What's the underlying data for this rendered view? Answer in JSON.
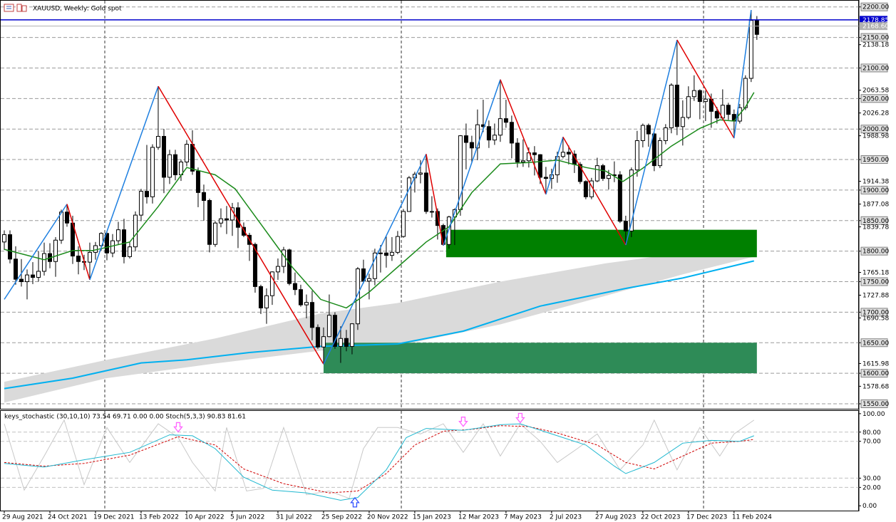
{
  "chart_data": [
    {
      "type": "candlestick",
      "title": "XAUUSD, Weekly:  Gold spot",
      "categories": [
        "29 Aug 2021",
        null,
        null,
        null,
        null,
        null,
        null,
        null,
        "24 Oct 2021",
        null,
        null,
        null,
        null,
        null,
        null,
        null,
        "19 Dec 2021",
        null,
        null,
        null,
        null,
        null,
        null,
        null,
        "13 Feb 2022",
        null,
        null,
        null,
        null,
        null,
        null,
        null,
        "10 Apr 2022",
        null,
        null,
        null,
        null,
        null,
        null,
        null,
        "5 Jun 2022",
        null,
        null,
        null,
        null,
        null,
        null,
        null,
        "31 Jul 2022",
        null,
        null,
        null,
        null,
        null,
        null,
        null,
        "25 Sep 2022",
        null,
        null,
        null,
        null,
        null,
        null,
        null,
        "20 Nov 2022",
        null,
        null,
        null,
        null,
        null,
        null,
        null,
        "15 Jan 2023",
        null,
        null,
        null,
        null,
        null,
        null,
        null,
        "12 Mar 2023",
        null,
        null,
        null,
        null,
        null,
        null,
        null,
        "7 May 2023",
        null,
        null,
        null,
        null,
        null,
        null,
        null,
        "2 Jul 2023",
        null,
        null,
        null,
        null,
        null,
        null,
        null,
        "27 Aug 2023",
        null,
        null,
        null,
        null,
        null,
        null,
        null,
        "22 Oct 2023",
        null,
        null,
        null,
        null,
        null,
        null,
        null,
        "17 Dec 2023",
        null,
        null,
        null,
        null,
        null,
        null,
        null,
        "11 Feb 2024",
        null,
        null,
        null,
        null
      ],
      "open": [
        1815,
        1827,
        1787,
        1754,
        1750,
        1761,
        1757,
        1767,
        1796,
        1783,
        1818,
        1864,
        1846,
        1792,
        1783,
        1782,
        1798,
        1809,
        1829,
        1797,
        1817,
        1835,
        1791,
        1807,
        1859,
        1898,
        1889,
        1970,
        1988,
        1921,
        1958,
        1925,
        1946,
        1975,
        1931,
        1896,
        1883,
        1811,
        1846,
        1853,
        1851,
        1871,
        1839,
        1826,
        1811,
        1742,
        1707,
        1727,
        1766,
        1775,
        1802,
        1747,
        1737,
        1712,
        1716,
        1675,
        1643,
        1660,
        1695,
        1644,
        1657,
        1644,
        1681,
        1771,
        1751,
        1755,
        1797,
        1797,
        1793,
        1798,
        1824,
        1865,
        1920,
        1926,
        1928,
        1865,
        1865,
        1842,
        1811,
        1856,
        1868,
        1989,
        1978,
        1969,
        2007,
        2004,
        1982,
        1990,
        2017,
        2011,
        1977,
        1946,
        1948,
        1961,
        1958,
        1921,
        1919,
        1925,
        1955,
        1962,
        1959,
        1942,
        1914,
        1889,
        1915,
        1940,
        1919,
        1924,
        1925,
        1849,
        1833,
        1933,
        1981,
        2006,
        1992,
        1940,
        1981,
        2002,
        2072,
        2004,
        2019,
        2053,
        2063,
        2045,
        2049,
        2029,
        2018,
        2039,
        2024,
        2013,
        2035,
        2083,
        2178
      ],
      "high": [
        1834,
        1834,
        1808,
        1787,
        1770,
        1782,
        1800,
        1814,
        1813,
        1823,
        1868,
        1877,
        1858,
        1808,
        1794,
        1814,
        1815,
        1831,
        1832,
        1828,
        1848,
        1853,
        1815,
        1865,
        1902,
        1974,
        1975,
        2070,
        2000,
        1966,
        1966,
        1950,
        1982,
        1998,
        1937,
        1909,
        1886,
        1849,
        1870,
        1874,
        1879,
        1880,
        1847,
        1830,
        1814,
        1745,
        1739,
        1767,
        1788,
        1807,
        1804,
        1765,
        1745,
        1729,
        1735,
        1680,
        1675,
        1729,
        1700,
        1677,
        1671,
        1682,
        1774,
        1786,
        1763,
        1804,
        1810,
        1824,
        1823,
        1833,
        1869,
        1923,
        1930,
        1949,
        1959,
        1890,
        1870,
        1845,
        1858,
        1870,
        1990,
        2009,
        1989,
        2032,
        2048,
        2014,
        2009,
        2081,
        2048,
        2022,
        1985,
        1983,
        1970,
        1972,
        1959,
        1938,
        1935,
        1963,
        1987,
        1973,
        1965,
        1946,
        1916,
        1920,
        1953,
        1943,
        1933,
        1947,
        1931,
        1858,
        1937,
        1997,
        2009,
        2009,
        1994,
        1986,
        2008,
        2075,
        2146,
        2047,
        2070,
        2088,
        2065,
        2063,
        2058,
        2036,
        2065,
        2043,
        2032,
        2041,
        2088,
        2195,
        2185
      ],
      "low": [
        1802,
        1780,
        1745,
        1742,
        1721,
        1746,
        1750,
        1760,
        1772,
        1758,
        1812,
        1840,
        1779,
        1762,
        1769,
        1753,
        1786,
        1801,
        1785,
        1790,
        1811,
        1780,
        1788,
        1800,
        1849,
        1878,
        1878,
        1966,
        1895,
        1910,
        1916,
        1915,
        1939,
        1925,
        1872,
        1850,
        1798,
        1807,
        1839,
        1828,
        1825,
        1805,
        1823,
        1784,
        1732,
        1697,
        1681,
        1712,
        1753,
        1764,
        1744,
        1728,
        1709,
        1690,
        1654,
        1640,
        1615,
        1659,
        1640,
        1617,
        1636,
        1631,
        1671,
        1747,
        1721,
        1744,
        1765,
        1773,
        1784,
        1795,
        1822,
        1867,
        1896,
        1911,
        1861,
        1855,
        1819,
        1809,
        1804,
        1810,
        1858,
        1934,
        1944,
        1949,
        1995,
        1969,
        1974,
        1979,
        2002,
        1952,
        1937,
        1938,
        1937,
        1924,
        1910,
        1893,
        1902,
        1912,
        1952,
        1942,
        1928,
        1910,
        1885,
        1885,
        1913,
        1915,
        1901,
        1913,
        1846,
        1810,
        1823,
        1922,
        1970,
        1971,
        1931,
        1936,
        1975,
        1993,
        1990,
        1973,
        2016,
        2046,
        2016,
        2013,
        2002,
        2009,
        2014,
        2015,
        1985,
        2009,
        2031,
        2077,
        2146
      ],
      "close": [
        1827,
        1787,
        1754,
        1750,
        1761,
        1757,
        1767,
        1796,
        1783,
        1818,
        1864,
        1846,
        1792,
        1783,
        1782,
        1798,
        1809,
        1829,
        1797,
        1817,
        1835,
        1791,
        1807,
        1859,
        1898,
        1889,
        1970,
        1988,
        1921,
        1958,
        1925,
        1946,
        1975,
        1931,
        1896,
        1883,
        1811,
        1846,
        1853,
        1851,
        1871,
        1839,
        1826,
        1811,
        1742,
        1707,
        1727,
        1766,
        1775,
        1802,
        1747,
        1737,
        1712,
        1716,
        1675,
        1643,
        1660,
        1695,
        1644,
        1657,
        1644,
        1681,
        1771,
        1751,
        1755,
        1797,
        1797,
        1793,
        1798,
        1824,
        1865,
        1920,
        1926,
        1928,
        1865,
        1865,
        1842,
        1811,
        1856,
        1868,
        1989,
        1978,
        1969,
        2007,
        2004,
        1982,
        1990,
        2017,
        2011,
        1977,
        1946,
        1948,
        1961,
        1958,
        1921,
        1919,
        1925,
        1955,
        1962,
        1959,
        1942,
        1914,
        1889,
        1915,
        1940,
        1919,
        1924,
        1925,
        1849,
        1833,
        1933,
        1981,
        2006,
        1992,
        1940,
        1981,
        2002,
        2072,
        2004,
        2019,
        2053,
        2063,
        2045,
        2049,
        2029,
        2018,
        2039,
        2024,
        2013,
        2035,
        2083,
        2178,
        2155
      ],
      "up_color": "#ffffff",
      "down_color": "#000000",
      "xlim": [
        -0.75,
        149.9
      ],
      "ylim": [
        1543,
        2209
      ],
      "grid": true,
      "yticks": [
        {
          "value": 2200,
          "label": "2200.00"
        },
        {
          "value": 2150,
          "label": "2150.00"
        },
        {
          "value": 2100,
          "label": "2100.00"
        },
        {
          "value": 2050,
          "label": "2050.00"
        },
        {
          "value": 2000,
          "label": "2000.00"
        },
        {
          "value": 1950,
          "label": "1950.00"
        },
        {
          "value": 1900,
          "label": "1900.00"
        },
        {
          "value": 1850,
          "label": "1850.00"
        },
        {
          "value": 1800,
          "label": "1800.00"
        },
        {
          "value": 1750,
          "label": "1750.00"
        },
        {
          "value": 1700,
          "label": "1700.00"
        },
        {
          "value": 1650,
          "label": "1650.00"
        },
        {
          "value": 1600,
          "label": "1600.00"
        },
        {
          "value": 1550,
          "label": "1550.00"
        }
      ],
      "yticks_minor": [
        2138.18,
        2063.58,
        2026.28,
        1988.98,
        1914.38,
        1877.08,
        1839.78,
        1765.18,
        1727.88,
        1690.58,
        1615.98,
        1578.68
      ],
      "price_lines": [
        {
          "value": 2178.85,
          "label": "2178.85",
          "color": "#0000cd"
        },
        {
          "value": 2168.6,
          "label": "2168.60",
          "color": "#b0b0b0"
        }
      ],
      "zones": [
        {
          "start": 56,
          "end": 132,
          "low": 1600,
          "high": 1650,
          "color": "#2e8b57"
        },
        {
          "start": 77.5,
          "end": 132,
          "low": 1790,
          "high": 1835,
          "color": "#008000"
        }
      ],
      "bands": [
        {
          "color": "#dadada",
          "x": [
            0,
            18,
            37,
            55.5,
            69,
            87,
            105.5,
            119,
            131.5
          ],
          "upper": [
            1586,
            1622,
            1657,
            1698,
            1715,
            1750,
            1780,
            1797,
            1826
          ],
          "lower": [
            1552,
            1592,
            1616,
            1637,
            1645,
            1680,
            1727,
            1762,
            1791
          ]
        }
      ],
      "lines": [
        {
          "color": "#00b0f0",
          "width": 2,
          "x": [
            0,
            12,
            24,
            32,
            43,
            55.5,
            69,
            80.5,
            94,
            109,
            119,
            131.5
          ],
          "values": [
            1575,
            1592,
            1617,
            1622,
            1634,
            1644,
            1648,
            1669,
            1710,
            1739,
            1756,
            1784
          ]
        },
        {
          "color": "#1a8a1a",
          "width": 1.5,
          "x": [
            0,
            7,
            12,
            15.5,
            22,
            27,
            32,
            37,
            40.5,
            45.5,
            50.5,
            55.5,
            60,
            64,
            69,
            74,
            78,
            82,
            87,
            92,
            97,
            102,
            105.5,
            108.5,
            112,
            117,
            122,
            125.5,
            128,
            130,
            131.5
          ],
          "values": [
            1803,
            1786,
            1801,
            1801,
            1815,
            1873,
            1937,
            1925,
            1902,
            1838,
            1774,
            1721,
            1707,
            1733,
            1774,
            1815,
            1840,
            1896,
            1943,
            1945,
            1949,
            1937,
            1931,
            1914,
            1936,
            1972,
            2001,
            2015,
            2013,
            2036,
            2060
          ]
        }
      ],
      "zigzag": {
        "up_color": "#1e7fe0",
        "down_color": "#e00000",
        "x": [
          0,
          11,
          15,
          27,
          56,
          74,
          77,
          87,
          95,
          98,
          109,
          118,
          128,
          131
        ],
        "values": [
          1721,
          1877,
          1753,
          2070,
          1615,
          1959,
          1809,
          2081,
          1893,
          1987,
          1810,
          2146,
          1985,
          2195
        ]
      }
    },
    {
      "type": "line",
      "title": "keys_stochastic (30,10,10) 73.54 69.71 0.00 0.00 Stoch(5,3,3) 90.83 81.61",
      "ylim": [
        -6,
        103
      ],
      "yticks": [
        {
          "value": 100,
          "label": "100.00"
        },
        {
          "value": 80,
          "label": "80.00"
        },
        {
          "value": 70,
          "label": "70.00"
        },
        {
          "value": 30,
          "label": "30.00"
        },
        {
          "value": 20,
          "label": "20.00"
        },
        {
          "value": 0,
          "label": "0.00"
        }
      ],
      "series": [
        {
          "color": "#c8c8c8",
          "dash": false,
          "x": [
            0,
            3.5,
            7,
            10.5,
            14,
            18,
            22,
            27,
            30.5,
            33,
            37,
            39,
            42.5,
            45.5,
            49,
            53,
            57,
            60.5,
            63,
            65.5,
            69,
            73,
            77,
            80.5,
            84,
            87,
            90.5,
            94,
            97,
            100.5,
            104,
            108,
            112,
            114,
            118,
            122,
            125.5,
            128,
            131.5
          ],
          "values": [
            89,
            17,
            54,
            93,
            23,
            85,
            47,
            89,
            74,
            47,
            16,
            85,
            16,
            19,
            85,
            12,
            16,
            8,
            62,
            85,
            85,
            78,
            89,
            58,
            89,
            54,
            89,
            70,
            47,
            62,
            78,
            39,
            66,
            93,
            39,
            85,
            54,
            78,
            93
          ]
        },
        {
          "color": "#d00000",
          "dash": true,
          "x": [
            0,
            7,
            14,
            22,
            30.5,
            37,
            42,
            49,
            57,
            62,
            67,
            72,
            77,
            82,
            87,
            92,
            97,
            104,
            109,
            114,
            119,
            124,
            129,
            131.5
          ],
          "values": [
            47,
            43,
            46,
            55,
            75,
            66,
            40,
            24,
            14,
            16,
            35,
            66,
            81,
            83,
            87,
            86,
            79,
            66,
            47,
            40,
            54,
            68,
            70,
            72
          ]
        },
        {
          "color": "#20b8d0",
          "dash": false,
          "x": [
            0,
            7,
            14,
            22,
            29,
            33,
            37,
            42,
            47,
            53,
            59,
            62,
            67,
            70.5,
            74,
            80.5,
            87,
            90.5,
            95.5,
            102,
            107,
            109,
            114,
            119,
            124,
            129,
            131.5
          ],
          "values": [
            46,
            42,
            50,
            58,
            77,
            76,
            62,
            31,
            17,
            14,
            6,
            9,
            39,
            74,
            84,
            82,
            88,
            89,
            79,
            66,
            43,
            35,
            47,
            68,
            71,
            70,
            76
          ]
        }
      ],
      "signals": [
        {
          "x": 30.5,
          "value": 81,
          "direction": "down",
          "color": "#ff66ff"
        },
        {
          "x": 61.5,
          "value": 8,
          "direction": "up",
          "color": "#3050ff"
        },
        {
          "x": 80.5,
          "value": 87,
          "direction": "down",
          "color": "#ff66ff"
        },
        {
          "x": 90.5,
          "value": 91,
          "direction": "down",
          "color": "#ff66ff"
        }
      ]
    }
  ]
}
